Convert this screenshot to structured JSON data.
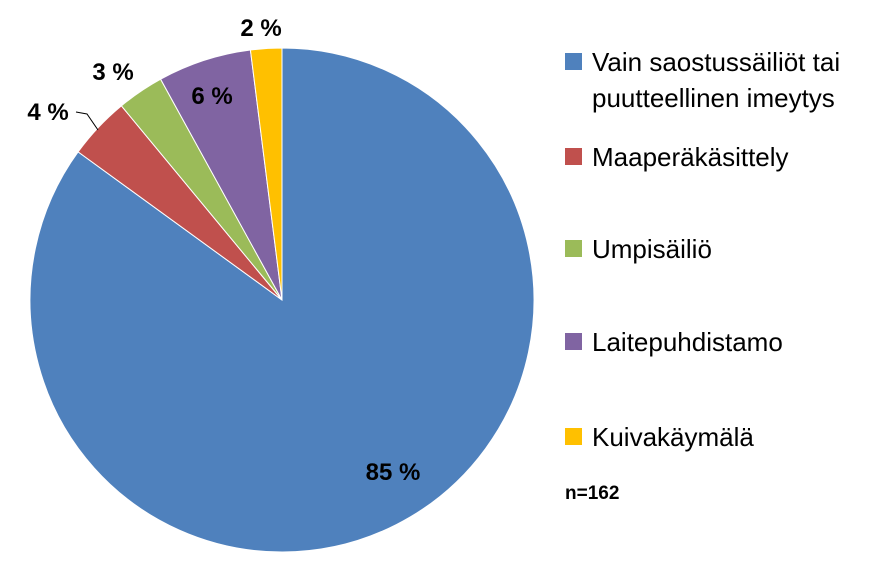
{
  "chart_data": {
    "type": "pie",
    "title": "",
    "categories": [
      "Vain saostussäiliöt tai\npuutteellinen imeytys",
      "Maaperäkäsittely",
      "Umpisäiliö",
      "Laitepuhdistamo",
      "Kuivakäymälä"
    ],
    "values": [
      85,
      4,
      3,
      6,
      2
    ],
    "data_labels": [
      "85 %",
      "4 %",
      "3 %",
      "6 %",
      "2 %"
    ],
    "colors": [
      "#4F81BD",
      "#C0504D",
      "#9BBB59",
      "#8064A2",
      "#FFC000"
    ],
    "legend_position": "right",
    "note": "n=162"
  }
}
